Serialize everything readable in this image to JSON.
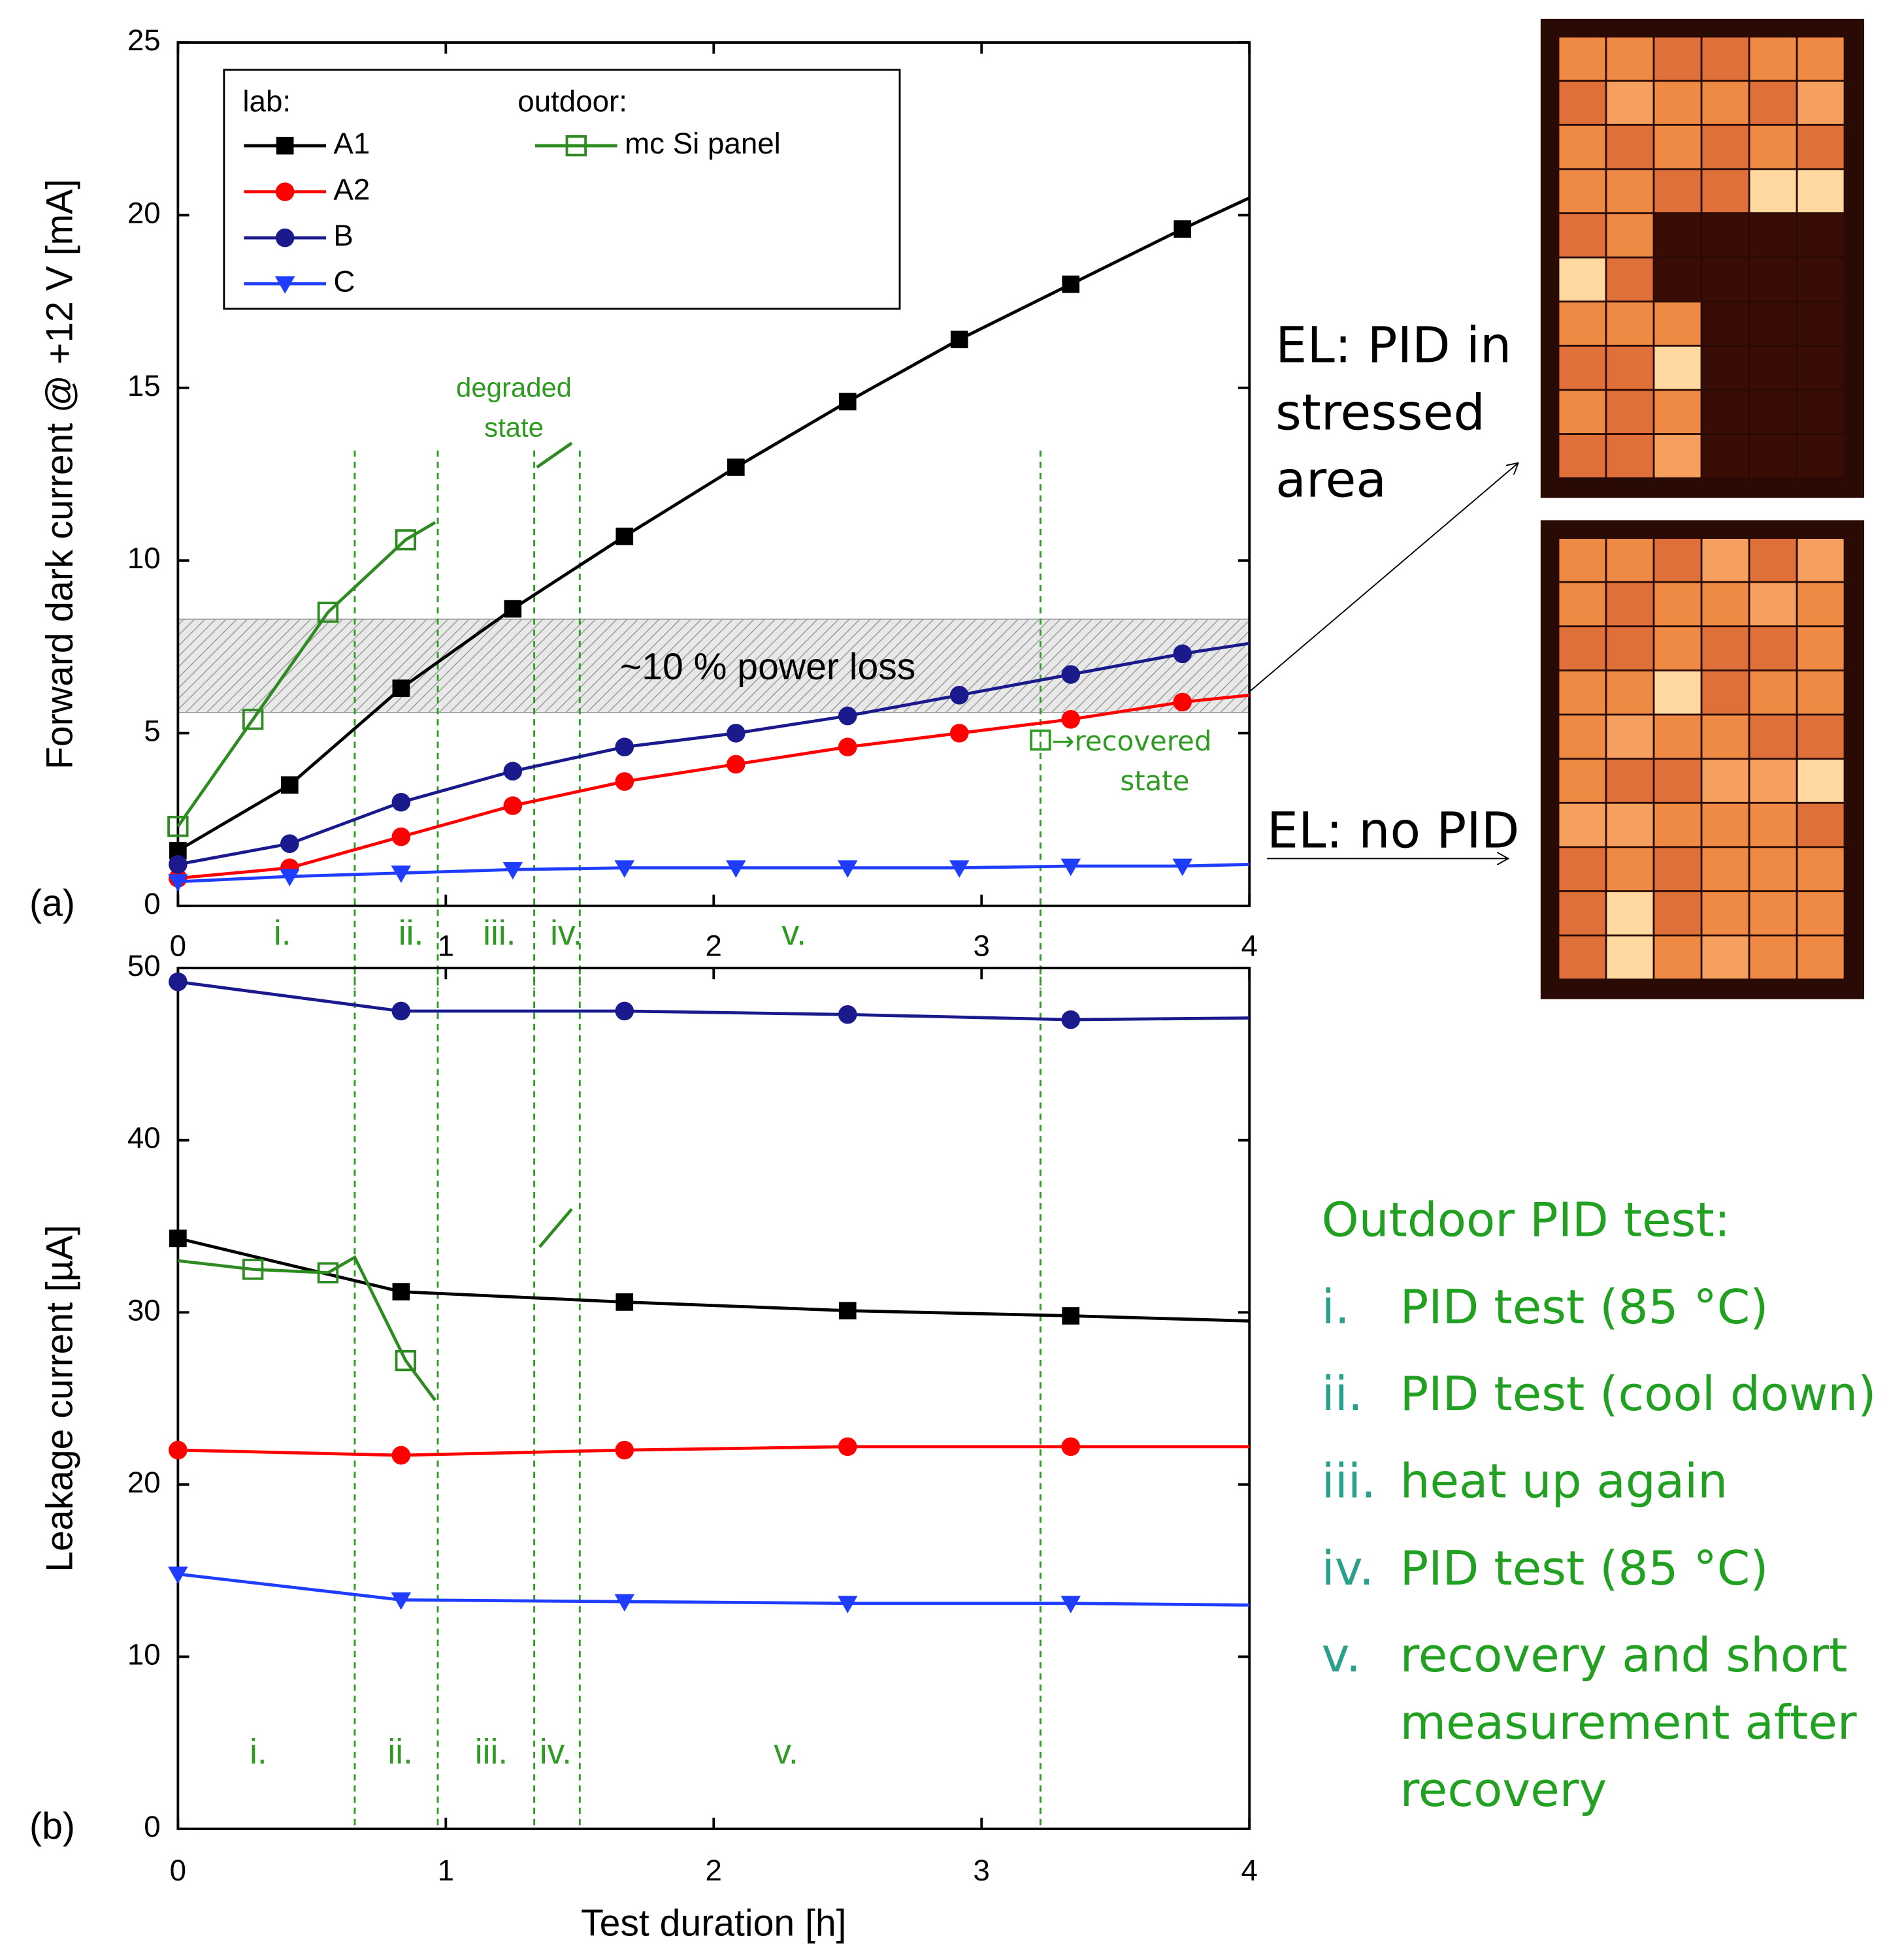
{
  "chart_data": [
    {
      "type": "line",
      "panel_label": "(a)",
      "y_label": "Forward dark current @ +12 V [mA]",
      "xlim": [
        0,
        4
      ],
      "xticks": [
        0,
        1,
        2,
        3,
        4
      ],
      "ylim": [
        0,
        25
      ],
      "yticks": [
        0,
        5,
        10,
        15,
        20,
        25
      ],
      "band": {
        "range": [
          5.6,
          8.3
        ],
        "label": "~10 % power loss"
      },
      "vlines": [
        0.66,
        0.97,
        1.33,
        1.5,
        3.22
      ],
      "phase_labels": [
        "i.",
        "ii.",
        "iii.",
        "iv.",
        "v."
      ],
      "legend_titles": [
        "lab:",
        "outdoor:"
      ],
      "degraded_label": [
        "degraded",
        "state"
      ],
      "recovered": {
        "x": 3.22,
        "y": 4.8,
        "label": [
          "→recovered",
          "state"
        ]
      },
      "series": [
        {
          "name": "A1",
          "color": "#000000",
          "marker": "square",
          "x": [
            0,
            0.417,
            0.833,
            1.25,
            1.667,
            2.083,
            2.5,
            2.917,
            3.333,
            3.75,
            4
          ],
          "values": [
            1.6,
            3.5,
            6.3,
            8.6,
            10.7,
            12.7,
            14.6,
            16.4,
            18.0,
            19.6,
            20.5
          ]
        },
        {
          "name": "A2",
          "color": "#ff0000",
          "marker": "circle",
          "x": [
            0,
            0.417,
            0.833,
            1.25,
            1.667,
            2.083,
            2.5,
            2.917,
            3.333,
            3.75,
            4
          ],
          "values": [
            0.8,
            1.1,
            2.0,
            2.9,
            3.6,
            4.1,
            4.6,
            5.0,
            5.4,
            5.9,
            6.1
          ]
        },
        {
          "name": "B",
          "color": "#1a1a8c",
          "marker": "circle",
          "x": [
            0,
            0.417,
            0.833,
            1.25,
            1.667,
            2.083,
            2.5,
            2.917,
            3.333,
            3.75,
            4
          ],
          "values": [
            1.2,
            1.8,
            3.0,
            3.9,
            4.6,
            5.0,
            5.5,
            6.1,
            6.7,
            7.3,
            7.6
          ]
        },
        {
          "name": "C",
          "color": "#1f3dff",
          "marker": "triangle",
          "x": [
            0,
            0.417,
            0.833,
            1.25,
            1.667,
            2.083,
            2.5,
            2.917,
            3.333,
            3.75,
            4
          ],
          "values": [
            0.7,
            0.85,
            0.95,
            1.05,
            1.1,
            1.1,
            1.1,
            1.1,
            1.15,
            1.15,
            1.2
          ]
        },
        {
          "name": "mc Si panel",
          "color": "#2e8b22",
          "marker": "open-square",
          "line": false,
          "x": [
            0,
            0.28,
            0.56,
            0.85
          ],
          "values": [
            2.3,
            5.4,
            8.5,
            10.6
          ]
        },
        {
          "color": "#2e8b22",
          "marker": "none",
          "x": [
            0,
            0.28,
            0.56,
            0.85,
            0.96,
            null,
            1.34,
            1.47
          ],
          "values": [
            2.3,
            5.4,
            8.5,
            10.6,
            11.1,
            null,
            12.7,
            13.4
          ]
        }
      ]
    },
    {
      "type": "line",
      "panel_label": "(b)",
      "y_label": "Leakage current [µA]",
      "x_label": "Test duration [h]",
      "xlim": [
        0,
        4
      ],
      "xticks": [
        0,
        1,
        2,
        3,
        4
      ],
      "ylim": [
        0,
        50
      ],
      "yticks": [
        0,
        10,
        20,
        30,
        40,
        50
      ],
      "vlines": [
        0.66,
        0.97,
        1.33,
        1.5,
        3.22
      ],
      "phase_labels": [
        "i.",
        "ii.",
        "iii.",
        "iv.",
        "v."
      ],
      "series": [
        {
          "color": "#000000",
          "marker": "square",
          "x": [
            0,
            0.833,
            1.667,
            2.5,
            3.333,
            4
          ],
          "values": [
            34.3,
            31.2,
            30.6,
            30.1,
            29.8,
            29.5
          ]
        },
        {
          "color": "#ff0000",
          "marker": "circle",
          "x": [
            0,
            0.833,
            1.667,
            2.5,
            3.333,
            4
          ],
          "values": [
            22.0,
            21.7,
            22.0,
            22.2,
            22.2,
            22.2
          ]
        },
        {
          "color": "#1a1a8c",
          "marker": "circle",
          "x": [
            0,
            0.833,
            1.667,
            2.5,
            3.333,
            4
          ],
          "values": [
            49.2,
            47.5,
            47.5,
            47.3,
            47.0,
            47.1
          ]
        },
        {
          "color": "#1f3dff",
          "marker": "triangle",
          "x": [
            0,
            0.833,
            1.667,
            2.5,
            3.333,
            4
          ],
          "values": [
            14.8,
            13.3,
            13.2,
            13.1,
            13.1,
            13.0
          ]
        },
        {
          "color": "#2e8b22",
          "marker": "open-square",
          "line": false,
          "x": [
            0.28,
            0.56,
            0.85
          ],
          "values": [
            32.5,
            32.3,
            27.2
          ]
        },
        {
          "color": "#2e8b22",
          "marker": "none",
          "x": [
            0,
            0.28,
            0.56,
            0.66,
            0.85,
            0.96,
            null,
            1.35,
            1.47
          ],
          "values": [
            33.0,
            32.5,
            32.3,
            33.2,
            27.2,
            24.9,
            null,
            33.8,
            36.0
          ]
        }
      ]
    }
  ],
  "el_labels": {
    "stressed": [
      "EL: PID in",
      "stressed",
      "area"
    ],
    "no_pid": "EL: no PID"
  },
  "outdoor_test": {
    "title": "Outdoor  PID test:",
    "items": [
      {
        "numeral": "i.",
        "text": [
          "PID test (85 °C)"
        ]
      },
      {
        "numeral": "ii.",
        "text": [
          "PID test (cool down)"
        ]
      },
      {
        "numeral": "iii.",
        "text": [
          "heat up again"
        ]
      },
      {
        "numeral": "iv.",
        "text": [
          "PID test (85 °C)"
        ]
      },
      {
        "numeral": "v.",
        "text": [
          "recovery and short",
          "measurement after",
          "recovery"
        ]
      }
    ]
  }
}
